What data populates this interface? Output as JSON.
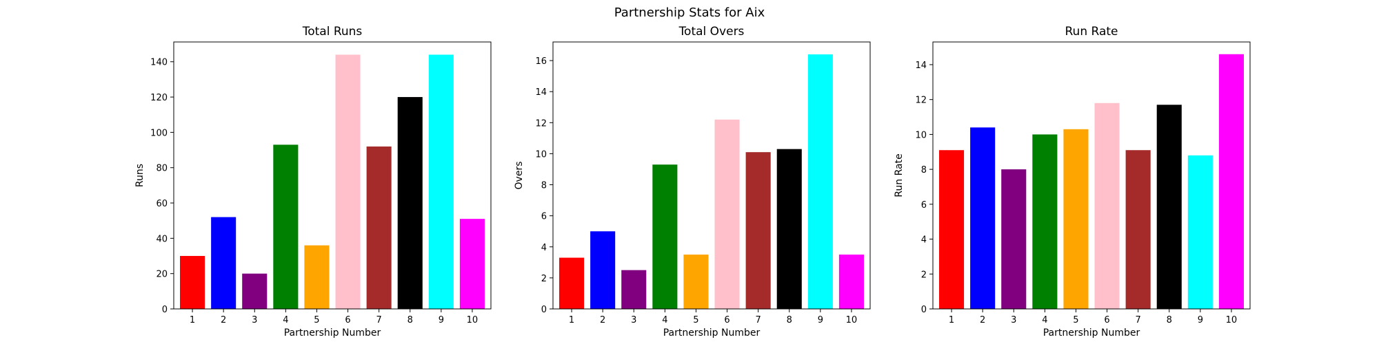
{
  "figure": {
    "suptitle": "Partnership Stats for Aix"
  },
  "bar_colors": [
    "#ff0000",
    "#0000ff",
    "#800080",
    "#008000",
    "#ffa500",
    "#ffc0cb",
    "#a52a2a",
    "#000000",
    "#00ffff",
    "#ff00ff"
  ],
  "chart_data": [
    {
      "type": "bar",
      "title": "Total Runs",
      "xlabel": "Partnership Number",
      "ylabel": "Runs",
      "categories": [
        "1",
        "2",
        "3",
        "4",
        "5",
        "6",
        "7",
        "8",
        "9",
        "10"
      ],
      "values": [
        30,
        52,
        20,
        93,
        36,
        144,
        92,
        120,
        144,
        51
      ],
      "ylim": [
        0,
        151.2
      ],
      "yticks": [
        0,
        20,
        40,
        60,
        80,
        100,
        120,
        140
      ],
      "ytick_labels": [
        "0",
        "20",
        "40",
        "60",
        "80",
        "100",
        "120",
        "140"
      ],
      "grid": false
    },
    {
      "type": "bar",
      "title": "Total Overs",
      "xlabel": "Partnership Number",
      "ylabel": "Overs",
      "categories": [
        "1",
        "2",
        "3",
        "4",
        "5",
        "6",
        "7",
        "8",
        "9",
        "10"
      ],
      "values": [
        3.3,
        5.0,
        2.5,
        9.3,
        3.5,
        12.2,
        10.1,
        10.3,
        16.4,
        3.5
      ],
      "ylim": [
        0,
        17.2
      ],
      "yticks": [
        0,
        2,
        4,
        6,
        8,
        10,
        12,
        14,
        16
      ],
      "ytick_labels": [
        "0",
        "2",
        "4",
        "6",
        "8",
        "10",
        "12",
        "14",
        "16"
      ],
      "grid": false
    },
    {
      "type": "bar",
      "title": "Run Rate",
      "xlabel": "Partnership Number",
      "ylabel": "Run Rate",
      "categories": [
        "1",
        "2",
        "3",
        "4",
        "5",
        "6",
        "7",
        "8",
        "9",
        "10"
      ],
      "values": [
        9.1,
        10.4,
        8.0,
        10.0,
        10.3,
        11.8,
        9.1,
        11.7,
        8.8,
        14.6
      ],
      "ylim": [
        0,
        15.3
      ],
      "yticks": [
        0,
        2,
        4,
        6,
        8,
        10,
        12,
        14
      ],
      "ytick_labels": [
        "0",
        "2",
        "4",
        "6",
        "8",
        "10",
        "12",
        "14"
      ],
      "grid": false
    }
  ]
}
